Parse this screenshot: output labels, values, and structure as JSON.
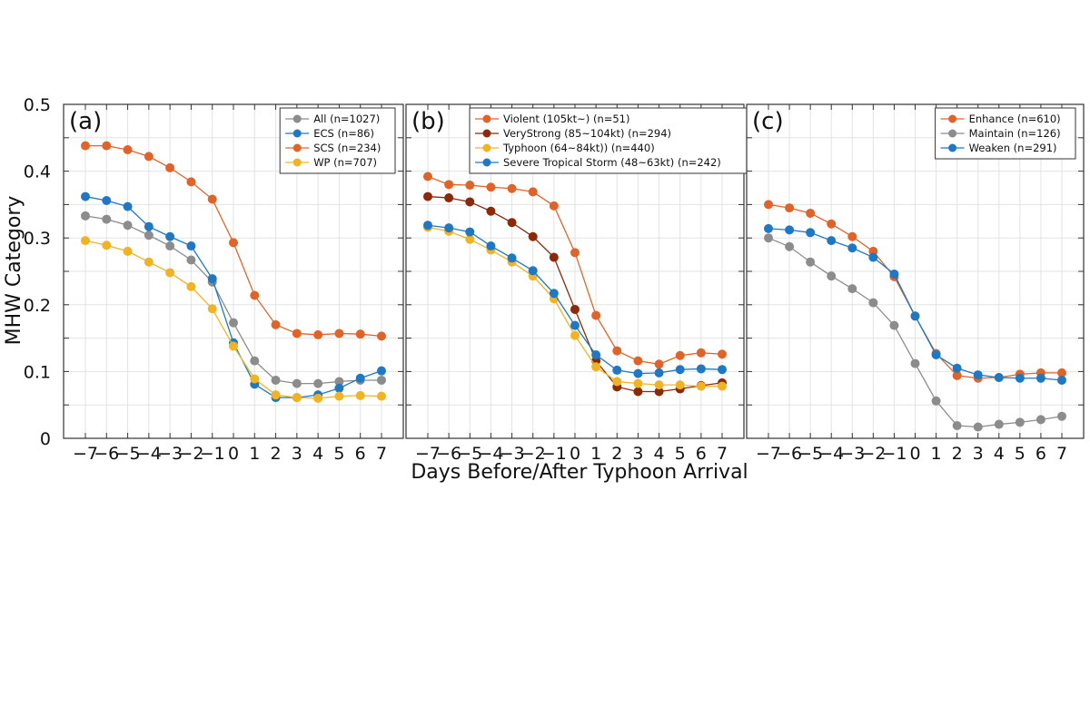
{
  "chart_data": {
    "type": "line",
    "xlabel": "Days Before/After Typhoon Arrival",
    "ylabel": "MHW Category",
    "x": [
      -7,
      -6,
      -5,
      -4,
      -3,
      -2,
      -1,
      0,
      1,
      2,
      3,
      4,
      5,
      6,
      7
    ],
    "xtick_labels": [
      "−7",
      "−6",
      "−5",
      "−4",
      "−3",
      "−2",
      "−1",
      "0",
      "1",
      "2",
      "3",
      "4",
      "5",
      "6",
      "7"
    ],
    "ylim": [
      0,
      0.5
    ],
    "yticks": [
      0,
      0.1,
      0.2,
      0.3,
      0.4,
      0.5
    ],
    "ytick_labels": [
      "0",
      "0.1",
      "0.2",
      "0.3",
      "0.4",
      "0.5"
    ],
    "grid": true,
    "panels": [
      {
        "label": "(a)",
        "legend_position": "top-right",
        "series": [
          {
            "name": "All (n=1027)",
            "color": "#8c8c8c",
            "values": [
              0.333,
              0.328,
              0.319,
              0.304,
              0.288,
              0.267,
              0.234,
              0.173,
              0.116,
              0.087,
              0.082,
              0.082,
              0.085,
              0.087,
              0.087
            ]
          },
          {
            "name": "ECS (n=86)",
            "color": "#1f78c1",
            "values": [
              0.362,
              0.356,
              0.347,
              0.317,
              0.302,
              0.288,
              0.239,
              0.143,
              0.081,
              0.061,
              0.061,
              0.065,
              0.075,
              0.09,
              0.101
            ]
          },
          {
            "name": "SCS (n=234)",
            "color": "#e0642a",
            "values": [
              0.438,
              0.438,
              0.432,
              0.422,
              0.405,
              0.384,
              0.358,
              0.293,
              0.214,
              0.17,
              0.157,
              0.155,
              0.157,
              0.156,
              0.153
            ]
          },
          {
            "name": "WP (n=707)",
            "color": "#f0b323",
            "values": [
              0.296,
              0.289,
              0.28,
              0.264,
              0.248,
              0.227,
              0.194,
              0.138,
              0.089,
              0.065,
              0.061,
              0.06,
              0.063,
              0.064,
              0.063
            ]
          }
        ]
      },
      {
        "label": "(b)",
        "legend_position": "top-left",
        "series": [
          {
            "name": "Violent (105kt~) (n=51)",
            "color": "#e0642a",
            "values": [
              0.392,
              0.38,
              0.379,
              0.376,
              0.374,
              0.369,
              0.348,
              0.278,
              0.184,
              0.131,
              0.116,
              0.111,
              0.124,
              0.128,
              0.126
            ]
          },
          {
            "name": "VeryStrong (85~104kt) (n=294)",
            "color": "#8b2a0a",
            "values": [
              0.362,
              0.36,
              0.354,
              0.34,
              0.323,
              0.302,
              0.271,
              0.193,
              0.116,
              0.077,
              0.07,
              0.07,
              0.074,
              0.079,
              0.083
            ]
          },
          {
            "name": "Typhoon (64~84kt)) (n=440)",
            "color": "#f0b323",
            "values": [
              0.316,
              0.31,
              0.298,
              0.282,
              0.264,
              0.243,
              0.209,
              0.154,
              0.107,
              0.085,
              0.082,
              0.08,
              0.08,
              0.078,
              0.078
            ]
          },
          {
            "name": "Severe Tropical Storm (48~63kt) (n=242)",
            "color": "#1f78c1",
            "values": [
              0.319,
              0.315,
              0.309,
              0.288,
              0.27,
              0.251,
              0.217,
              0.169,
              0.125,
              0.102,
              0.097,
              0.098,
              0.103,
              0.104,
              0.103
            ]
          }
        ]
      },
      {
        "label": "(c)",
        "legend_position": "top-right",
        "series": [
          {
            "name": "Enhance (n=610)",
            "color": "#e0642a",
            "values": [
              0.35,
              0.345,
              0.337,
              0.321,
              0.302,
              0.28,
              0.242,
              0.183,
              0.127,
              0.094,
              0.09,
              0.091,
              0.096,
              0.098,
              0.098
            ]
          },
          {
            "name": "Maintain (n=126)",
            "color": "#8c8c8c",
            "values": [
              0.3,
              0.287,
              0.264,
              0.243,
              0.224,
              0.203,
              0.169,
              0.112,
              0.056,
              0.019,
              0.017,
              0.021,
              0.024,
              0.028,
              0.033
            ]
          },
          {
            "name": "Weaken (n=291)",
            "color": "#1f78c1",
            "values": [
              0.314,
              0.312,
              0.308,
              0.296,
              0.285,
              0.271,
              0.246,
              0.183,
              0.125,
              0.105,
              0.095,
              0.091,
              0.09,
              0.09,
              0.087
            ]
          }
        ]
      }
    ]
  }
}
